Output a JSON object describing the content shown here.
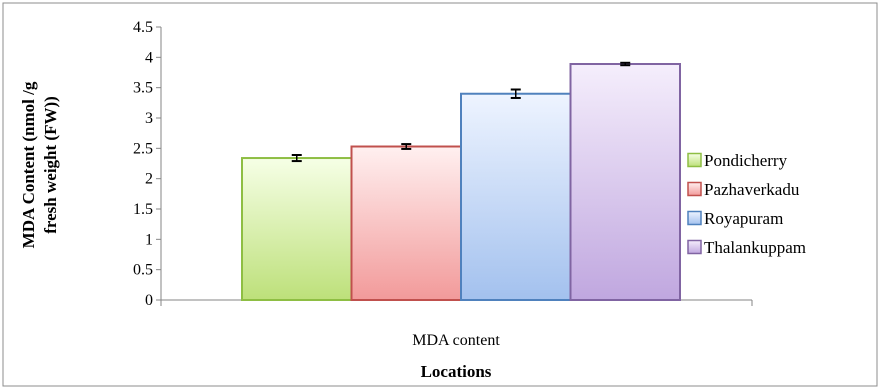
{
  "chart_data": {
    "type": "bar",
    "categories": [
      "MDA content"
    ],
    "xlabel": "Locations",
    "ylabel": "MDA Content (nmol /g fresh weight (FW))",
    "ylabel_lines": [
      "MDA Content (nmol /g",
      "fresh weight (FW))"
    ],
    "ylim": [
      0,
      4.5
    ],
    "yticks": [
      "0",
      "0.5",
      "1",
      "1.5",
      "2",
      "2.5",
      "3",
      "3.5",
      "4",
      "4.5"
    ],
    "grid": false,
    "legend_position": "right",
    "series": [
      {
        "name": "Pondicherry",
        "values": [
          2.34
        ],
        "error": [
          0.05
        ],
        "fill_top": "#f6ffe6",
        "fill_bottom": "#bde07a",
        "stroke": "#8ebe43"
      },
      {
        "name": "Pazhaverkadu",
        "values": [
          2.53
        ],
        "error": [
          0.04
        ],
        "fill_top": "#fff0f0",
        "fill_bottom": "#f29a9a",
        "stroke": "#c0504d"
      },
      {
        "name": "Royapuram",
        "values": [
          3.4
        ],
        "error": [
          0.07
        ],
        "fill_top": "#eef4ff",
        "fill_bottom": "#a3c1ee",
        "stroke": "#4f81bd"
      },
      {
        "name": "Thalankuppam",
        "values": [
          3.89
        ],
        "error": [
          0.02
        ],
        "fill_top": "#f5eefc",
        "fill_bottom": "#c0a7df",
        "stroke": "#8064a2"
      }
    ]
  }
}
